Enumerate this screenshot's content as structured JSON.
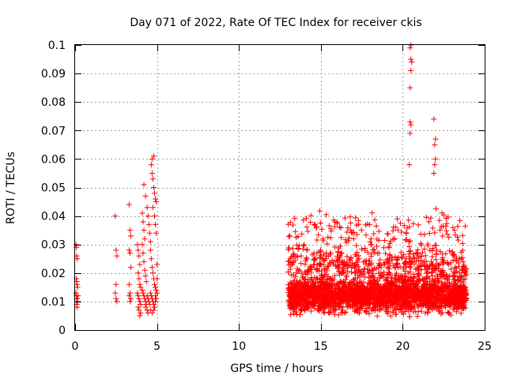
{
  "chart_data": {
    "type": "scatter",
    "title": "Day 071 of 2022, Rate Of TEC Index for receiver ckis",
    "xlabel": "GPS time / hours",
    "ylabel": "ROTI / TECUs",
    "xlim": [
      0,
      25
    ],
    "ylim": [
      0,
      0.1
    ],
    "x_ticks": [
      0,
      5,
      10,
      15,
      20,
      25
    ],
    "x_tick_labels": [
      "0",
      "5",
      "10",
      "15",
      "20",
      "25"
    ],
    "y_ticks": [
      0,
      0.01,
      0.02,
      0.03,
      0.04,
      0.05,
      0.06,
      0.07,
      0.08,
      0.09,
      0.1
    ],
    "y_tick_labels": [
      "0",
      "0.01",
      "0.02",
      "0.03",
      "0.04",
      "0.05",
      "0.06",
      "0.07",
      "0.08",
      "0.09",
      "0.1"
    ],
    "grid": true,
    "marker": "+",
    "series": [
      {
        "name": "ROTI",
        "color": "#ff0000",
        "points": [
          [
            0.05,
            0.03
          ],
          [
            0.08,
            0.029
          ],
          [
            0.1,
            0.026
          ],
          [
            0.12,
            0.025
          ],
          [
            0.08,
            0.018
          ],
          [
            0.1,
            0.017
          ],
          [
            0.12,
            0.016
          ],
          [
            0.15,
            0.015
          ],
          [
            0.05,
            0.013
          ],
          [
            0.08,
            0.012
          ],
          [
            0.1,
            0.011
          ],
          [
            0.12,
            0.011
          ],
          [
            0.15,
            0.01
          ],
          [
            0.1,
            0.009
          ],
          [
            0.12,
            0.008
          ],
          [
            0.18,
            0.012
          ],
          [
            2.45,
            0.04
          ],
          [
            2.5,
            0.028
          ],
          [
            2.55,
            0.026
          ],
          [
            2.5,
            0.016
          ],
          [
            2.45,
            0.013
          ],
          [
            2.5,
            0.011
          ],
          [
            2.55,
            0.01
          ],
          [
            3.3,
            0.044
          ],
          [
            3.35,
            0.035
          ],
          [
            3.4,
            0.033
          ],
          [
            3.3,
            0.028
          ],
          [
            3.35,
            0.027
          ],
          [
            3.4,
            0.022
          ],
          [
            3.3,
            0.016
          ],
          [
            3.35,
            0.013
          ],
          [
            3.3,
            0.012
          ],
          [
            3.4,
            0.011
          ],
          [
            3.35,
            0.01
          ],
          [
            3.8,
            0.03
          ],
          [
            3.85,
            0.028
          ],
          [
            3.9,
            0.026
          ],
          [
            3.95,
            0.023
          ],
          [
            3.85,
            0.02
          ],
          [
            3.9,
            0.018
          ],
          [
            3.95,
            0.016
          ],
          [
            4.0,
            0.015
          ],
          [
            3.8,
            0.013
          ],
          [
            3.85,
            0.012
          ],
          [
            3.9,
            0.011
          ],
          [
            3.95,
            0.01
          ],
          [
            4.0,
            0.009
          ],
          [
            3.85,
            0.008
          ],
          [
            3.9,
            0.007
          ],
          [
            3.95,
            0.005
          ],
          [
            4.0,
            0.006
          ],
          [
            4.1,
            0.041
          ],
          [
            4.15,
            0.038
          ],
          [
            4.2,
            0.035
          ],
          [
            4.25,
            0.032
          ],
          [
            4.1,
            0.03
          ],
          [
            4.15,
            0.027
          ],
          [
            4.2,
            0.024
          ],
          [
            4.25,
            0.021
          ],
          [
            4.3,
            0.019
          ],
          [
            4.35,
            0.017
          ],
          [
            4.1,
            0.014
          ],
          [
            4.15,
            0.013
          ],
          [
            4.2,
            0.012
          ],
          [
            4.25,
            0.011
          ],
          [
            4.3,
            0.01
          ],
          [
            4.35,
            0.009
          ],
          [
            4.4,
            0.012
          ],
          [
            4.45,
            0.011
          ],
          [
            4.5,
            0.01
          ],
          [
            4.3,
            0.008
          ],
          [
            4.4,
            0.007
          ],
          [
            4.45,
            0.006
          ],
          [
            4.2,
            0.051
          ],
          [
            4.3,
            0.047
          ],
          [
            4.4,
            0.043
          ],
          [
            4.45,
            0.04
          ],
          [
            4.5,
            0.037
          ],
          [
            4.55,
            0.034
          ],
          [
            4.6,
            0.031
          ],
          [
            4.65,
            0.058
          ],
          [
            4.7,
            0.055
          ],
          [
            4.75,
            0.053
          ],
          [
            4.8,
            0.05
          ],
          [
            4.85,
            0.048
          ],
          [
            4.9,
            0.046
          ],
          [
            4.95,
            0.045
          ],
          [
            4.7,
            0.06
          ],
          [
            4.8,
            0.061
          ],
          [
            4.75,
            0.043
          ],
          [
            4.85,
            0.04
          ],
          [
            4.9,
            0.037
          ],
          [
            4.95,
            0.034
          ],
          [
            4.6,
            0.028
          ],
          [
            4.65,
            0.025
          ],
          [
            4.7,
            0.022
          ],
          [
            4.75,
            0.02
          ],
          [
            4.8,
            0.018
          ],
          [
            4.85,
            0.016
          ],
          [
            4.9,
            0.015
          ],
          [
            4.95,
            0.014
          ],
          [
            4.6,
            0.013
          ],
          [
            4.65,
            0.012
          ],
          [
            4.7,
            0.011
          ],
          [
            4.75,
            0.01
          ],
          [
            4.8,
            0.009
          ],
          [
            4.85,
            0.008
          ],
          [
            4.9,
            0.012
          ],
          [
            4.95,
            0.011
          ],
          [
            4.55,
            0.009
          ],
          [
            4.6,
            0.007
          ],
          [
            4.7,
            0.006
          ],
          [
            4.8,
            0.007
          ],
          [
            4.9,
            0.01
          ],
          [
            5.0,
            0.013
          ],
          [
            5.0,
            0.018
          ],
          [
            5.0,
            0.023
          ],
          [
            20.5,
            0.1
          ],
          [
            20.45,
            0.099
          ],
          [
            20.5,
            0.095
          ],
          [
            20.55,
            0.094
          ],
          [
            20.5,
            0.091
          ],
          [
            20.45,
            0.085
          ],
          [
            20.45,
            0.073
          ],
          [
            20.5,
            0.072
          ],
          [
            20.45,
            0.069
          ],
          [
            21.9,
            0.074
          ],
          [
            22.0,
            0.067
          ],
          [
            21.95,
            0.065
          ],
          [
            20.4,
            0.058
          ],
          [
            22.0,
            0.06
          ],
          [
            21.95,
            0.058
          ],
          [
            21.9,
            0.055
          ]
        ],
        "clusters": [
          {
            "x_range": [
              13.0,
              23.9
            ],
            "y_center": 0.012,
            "y_spread": 0.008,
            "count": 2300
          },
          {
            "x_range": [
              13.0,
              23.9
            ],
            "y_center": 0.022,
            "y_spread": 0.012,
            "count": 600
          },
          {
            "x_range": [
              13.0,
              23.9
            ],
            "y_center": 0.035,
            "y_spread": 0.01,
            "count": 140
          }
        ]
      }
    ]
  }
}
